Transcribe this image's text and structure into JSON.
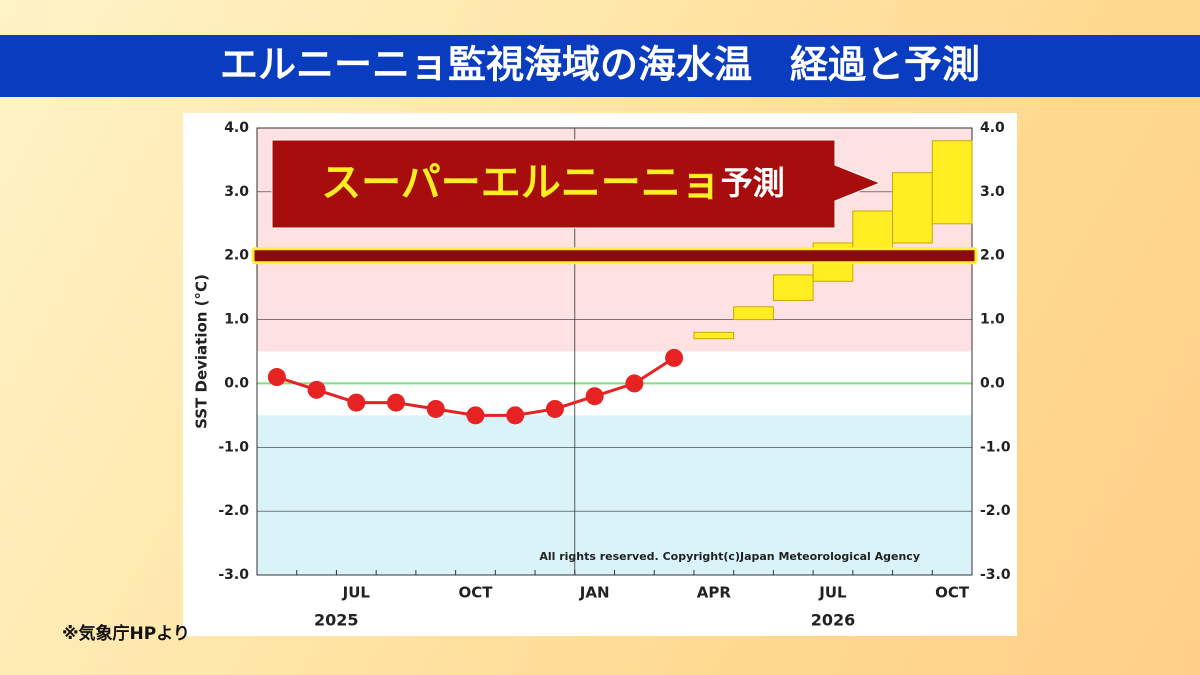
{
  "header": {
    "title": "エルニーニョ監視海域の海水温　経過と予測"
  },
  "banner": {
    "highlight": "スーパーエルニーニョ",
    "text": "予測"
  },
  "source": "※気象庁HPより",
  "chart_data": {
    "type": "line",
    "y_label": "SST Deviation (°C)",
    "copyright": "All rights reserved. Copyright(c)Japan Meteorological Agency",
    "categories": [
      null,
      null,
      "JUL",
      null,
      null,
      "OCT",
      null,
      null,
      "JAN",
      null,
      null,
      "APR",
      null,
      null,
      "JUL",
      null,
      null,
      "OCT"
    ],
    "years": [
      "2025",
      "2026"
    ],
    "ylim": [
      -3,
      4
    ],
    "yticks": [
      {
        "value": -3,
        "label": "-3.0"
      },
      {
        "value": -2,
        "label": "-2.0"
      },
      {
        "value": -1,
        "label": "-1.0"
      },
      {
        "value": 0,
        "label": "0.0"
      },
      {
        "value": 1,
        "label": "1.0"
      },
      {
        "value": 2,
        "label": "2.0"
      },
      {
        "value": 3,
        "label": "3.0"
      },
      {
        "value": 4,
        "label": "4.0"
      }
    ],
    "bands": [
      {
        "from": 0.5,
        "to": 4,
        "color": "#fde1e3"
      },
      {
        "from": -3,
        "to": -0.5,
        "color": "#d9f3f8"
      }
    ],
    "zero_line": {
      "value": 0,
      "color": "#7ee07e"
    },
    "threshold": {
      "value": 2,
      "color": "#8b0a0a",
      "outline": "#ffee33"
    },
    "series": [
      {
        "name": "observed",
        "color": "#e62222",
        "values": [
          0.1,
          -0.1,
          -0.3,
          -0.3,
          -0.4,
          -0.5,
          -0.5,
          -0.4,
          -0.2,
          0.0,
          0.4,
          null,
          null,
          null,
          null,
          null,
          null,
          null
        ]
      },
      {
        "name": "forecast",
        "color": "#ffee22",
        "low": [
          null,
          null,
          null,
          null,
          null,
          null,
          null,
          null,
          null,
          null,
          null,
          0.7,
          1.0,
          1.3,
          1.6,
          2.0,
          2.2,
          2.5
        ],
        "high": [
          null,
          null,
          null,
          null,
          null,
          null,
          null,
          null,
          null,
          null,
          null,
          0.8,
          1.2,
          1.7,
          2.2,
          2.7,
          3.3,
          3.8
        ]
      }
    ]
  }
}
